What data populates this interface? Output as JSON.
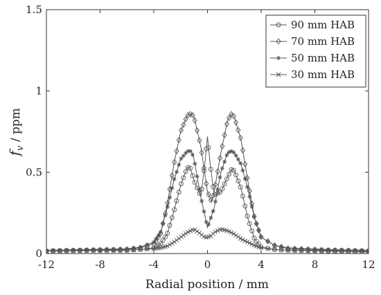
{
  "chart_data": {
    "type": "line",
    "title": "",
    "xlabel": "Radial position / mm",
    "ylabel": "f_v / ppm",
    "ylabel_parts": {
      "symbol": "f",
      "subscript": "v",
      "rest": " / ppm"
    },
    "xlim": [
      -12,
      12
    ],
    "ylim": [
      0,
      1.5
    ],
    "x_ticks": [
      -12,
      -8,
      -4,
      0,
      4,
      8,
      12
    ],
    "y_ticks": [
      0,
      0.5,
      1,
      1.5
    ],
    "x_tick_labels": [
      "-12",
      "-8",
      "-4",
      "0",
      "4",
      "8",
      "12"
    ],
    "y_tick_labels": [
      "0",
      "0.5",
      "1",
      "1.5"
    ],
    "grid": false,
    "legend_position": "top-right",
    "series": [
      {
        "name": "90 mm HAB",
        "marker": "circle",
        "color": "#555555",
        "x": [
          -12,
          -9,
          -6,
          -5,
          -4,
          -3.5,
          -3,
          -2.5,
          -2,
          -1.5,
          -1.3,
          -1,
          -0.5,
          -0.2,
          0,
          0.2,
          0.5,
          1,
          1.5,
          1.8,
          2,
          2.5,
          3,
          3.5,
          4,
          5,
          6,
          9,
          12
        ],
        "y": [
          0.015,
          0.02,
          0.02,
          0.025,
          0.035,
          0.06,
          0.12,
          0.26,
          0.42,
          0.53,
          0.53,
          0.45,
          0.35,
          0.55,
          0.72,
          0.55,
          0.36,
          0.38,
          0.47,
          0.52,
          0.51,
          0.4,
          0.22,
          0.09,
          0.04,
          0.025,
          0.02,
          0.015,
          0.01
        ]
      },
      {
        "name": "70 mm HAB",
        "marker": "diamond",
        "color": "#555555",
        "x": [
          -12,
          -9,
          -6,
          -5,
          -4,
          -3.5,
          -3,
          -2.5,
          -2,
          -1.5,
          -1.2,
          -1,
          -0.5,
          0,
          0.3,
          0.5,
          1,
          1.5,
          1.8,
          2,
          2.5,
          3,
          3.5,
          4,
          5,
          6,
          9,
          12
        ],
        "y": [
          0.015,
          0.02,
          0.025,
          0.035,
          0.06,
          0.12,
          0.3,
          0.55,
          0.75,
          0.85,
          0.86,
          0.84,
          0.66,
          0.38,
          0.32,
          0.38,
          0.62,
          0.82,
          0.86,
          0.84,
          0.7,
          0.45,
          0.22,
          0.1,
          0.05,
          0.03,
          0.02,
          0.015
        ]
      },
      {
        "name": "50 mm HAB",
        "marker": "star",
        "color": "#555555",
        "x": [
          -12,
          -9,
          -6,
          -5,
          -4,
          -3.5,
          -3,
          -2.5,
          -2,
          -1.5,
          -1.2,
          -1,
          -0.5,
          0,
          0.5,
          1,
          1.5,
          1.8,
          2,
          2.5,
          3,
          3.5,
          4,
          5,
          6,
          9,
          12
        ],
        "y": [
          0.02,
          0.025,
          0.03,
          0.04,
          0.07,
          0.13,
          0.28,
          0.45,
          0.58,
          0.63,
          0.63,
          0.58,
          0.35,
          0.16,
          0.28,
          0.5,
          0.62,
          0.63,
          0.62,
          0.55,
          0.4,
          0.22,
          0.1,
          0.05,
          0.035,
          0.025,
          0.02
        ]
      },
      {
        "name": "30 mm HAB",
        "marker": "x",
        "color": "#555555",
        "x": [
          -12,
          -9,
          -6,
          -5,
          -4,
          -3.5,
          -3,
          -2.5,
          -2,
          -1.5,
          -1,
          -0.5,
          -0.2,
          0,
          0.3,
          0.5,
          1,
          1.5,
          2,
          2.5,
          3,
          3.5,
          4,
          5,
          6,
          9,
          12
        ],
        "y": [
          0.015,
          0.018,
          0.02,
          0.025,
          0.03,
          0.035,
          0.045,
          0.07,
          0.1,
          0.13,
          0.15,
          0.12,
          0.1,
          0.1,
          0.11,
          0.13,
          0.15,
          0.14,
          0.12,
          0.09,
          0.07,
          0.05,
          0.035,
          0.025,
          0.02,
          0.018,
          0.015
        ]
      }
    ]
  }
}
